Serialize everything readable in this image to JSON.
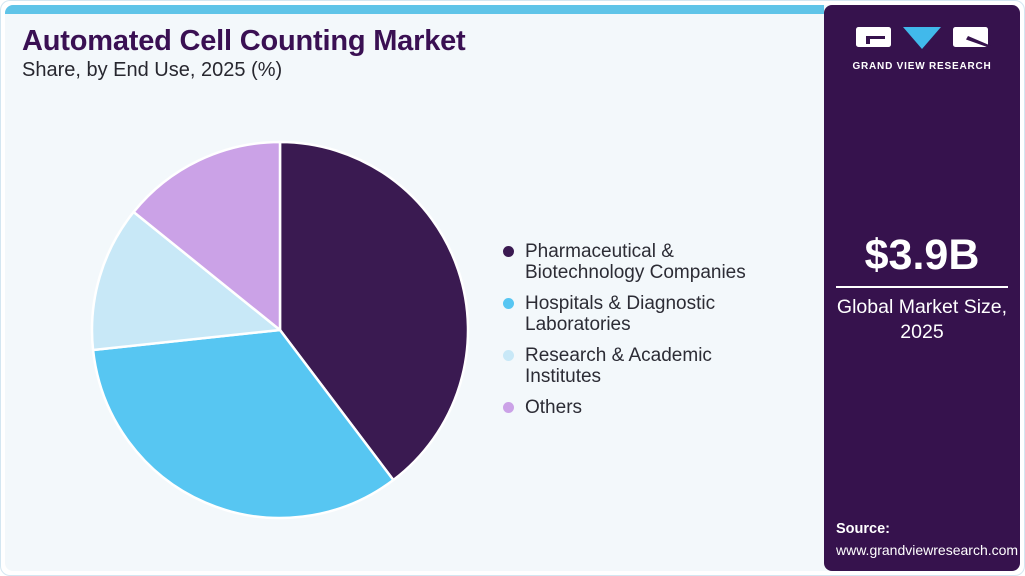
{
  "header": {
    "title": "Automated Cell Counting Market",
    "subtitle": "Share, by End Use, 2025 (%)"
  },
  "chart_data": {
    "type": "pie",
    "title": "Automated Cell Counting Market Share, by End Use, 2025 (%)",
    "unit": "%",
    "direction": "clockwise",
    "start_angle_deg": 0,
    "legend_position": "right",
    "slices": [
      {
        "label": "Pharmaceutical & Biotechnology Companies",
        "value": 39.7,
        "color": "#3A1A51"
      },
      {
        "label": "Hospitals & Diagnostic Laboratories",
        "value": 33.6,
        "color": "#57C6F2"
      },
      {
        "label": "Research & Academic Institutes",
        "value": 12.5,
        "color": "#C8E8F7"
      },
      {
        "label": "Others",
        "value": 14.2,
        "color": "#CBA2E7"
      }
    ]
  },
  "sidebar": {
    "brand": "GRAND VIEW RESEARCH",
    "market_size_value": "$3.9B",
    "market_size_label": "Global Market Size, 2025",
    "source_label": "Source:",
    "source_url": "www.grandviewresearch.com"
  },
  "colors": {
    "accent_cyan": "#5FC4E8",
    "sidebar_bg": "#36124D",
    "title_purple": "#3A1053",
    "main_bg": "#F3F8FB",
    "logo_triangle": "#41B9EB"
  }
}
